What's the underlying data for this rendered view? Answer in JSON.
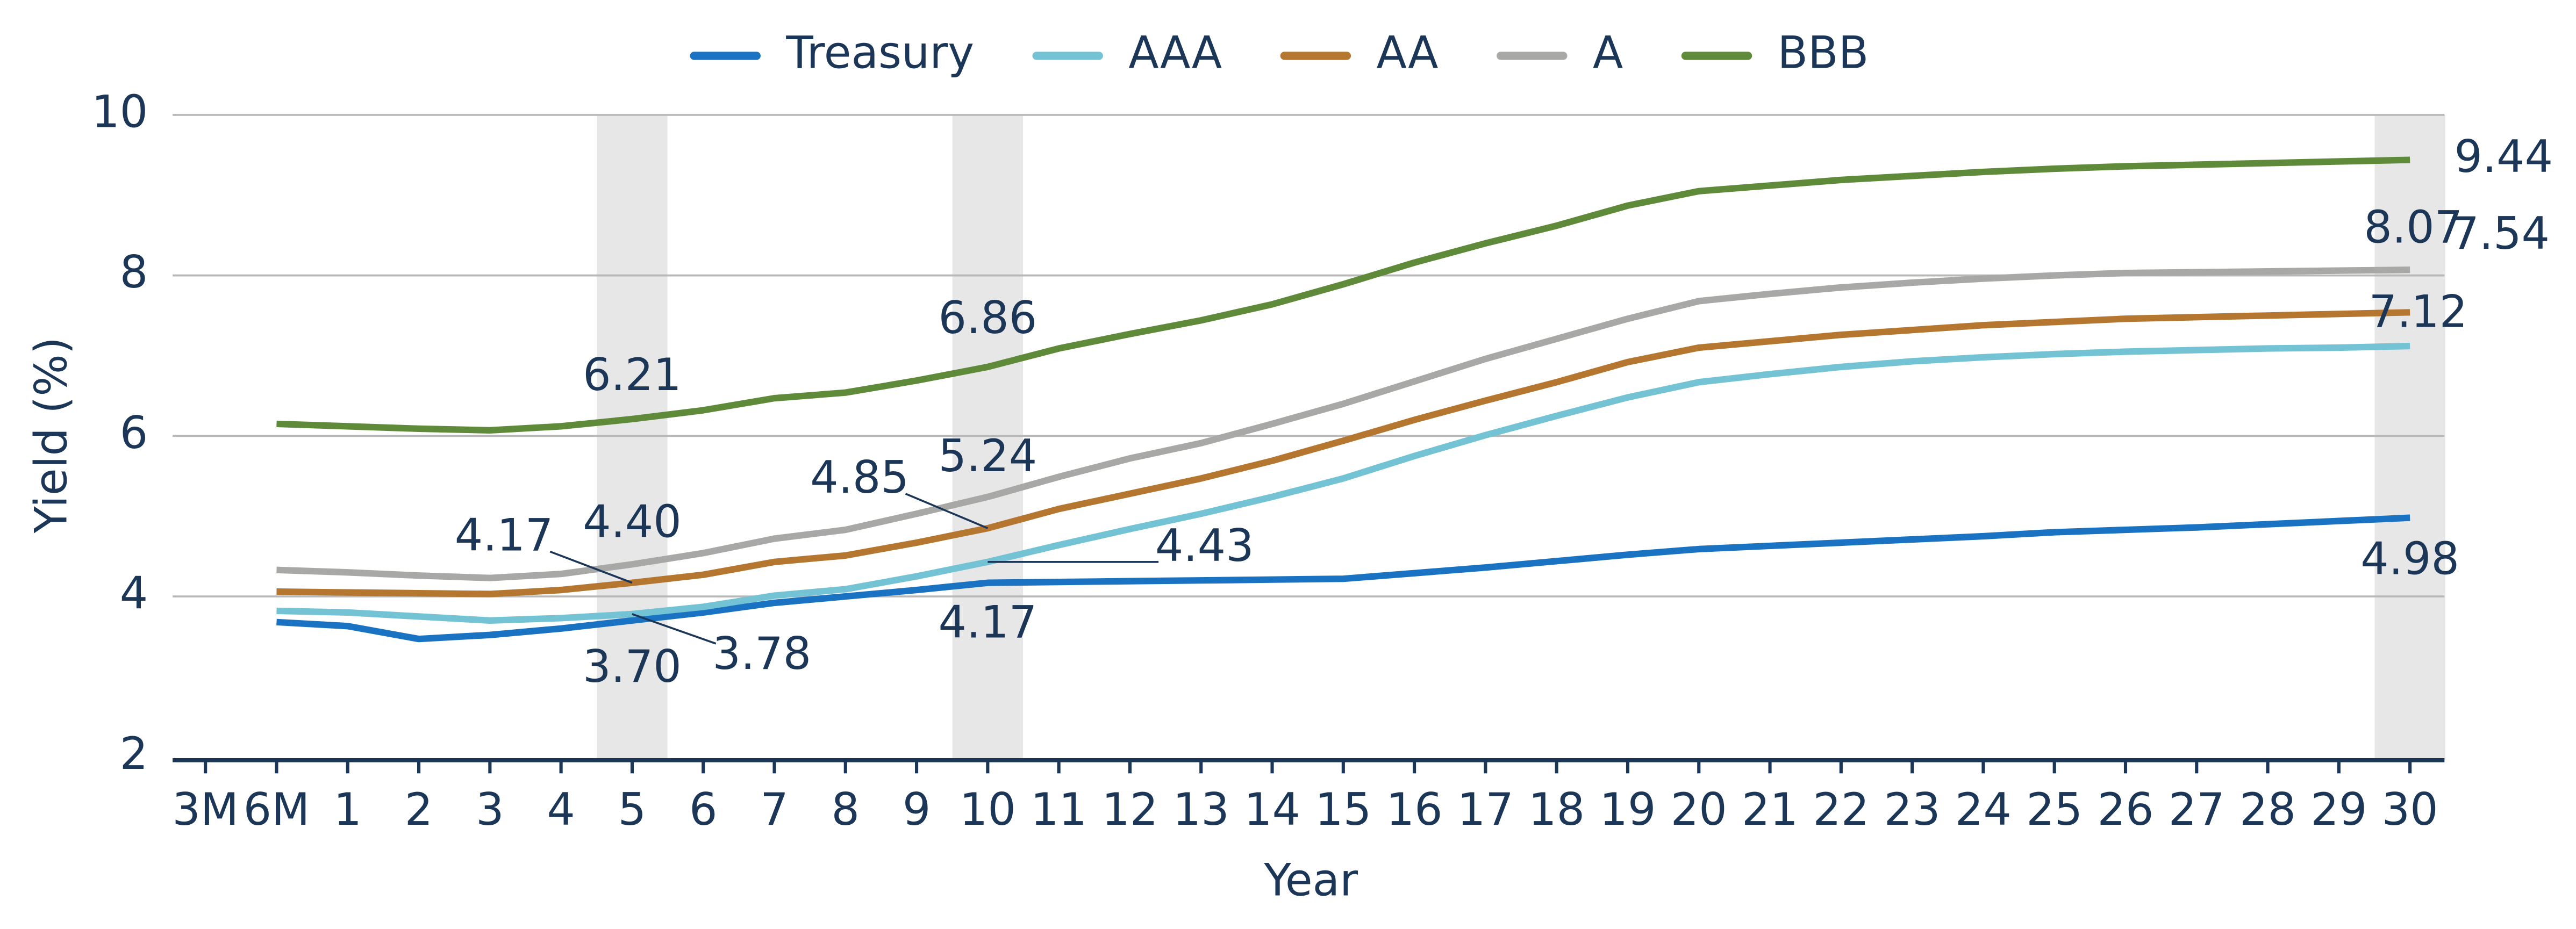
{
  "chart_data": {
    "type": "line",
    "x_label": "Year",
    "y_label": "Yield (%)",
    "categories": [
      "3M",
      "6M",
      "1",
      "2",
      "3",
      "4",
      "5",
      "6",
      "7",
      "8",
      "9",
      "10",
      "11",
      "12",
      "13",
      "14",
      "15",
      "16",
      "17",
      "18",
      "19",
      "20",
      "21",
      "22",
      "23",
      "24",
      "25",
      "26",
      "27",
      "28",
      "29",
      "30"
    ],
    "ylim": [
      2,
      10
    ],
    "yticks": [
      2,
      4,
      6,
      8,
      10
    ],
    "grid": true,
    "legend": "top",
    "series": [
      {
        "name": "Treasury",
        "color": "#1a73c2",
        "values": [
          null,
          3.68,
          3.63,
          3.47,
          3.52,
          3.6,
          3.7,
          3.8,
          3.92,
          4.0,
          4.08,
          4.17,
          4.18,
          4.19,
          4.2,
          4.21,
          4.22,
          4.29,
          4.36,
          4.44,
          4.52,
          4.59,
          4.63,
          4.67,
          4.71,
          4.75,
          4.8,
          4.83,
          4.86,
          4.9,
          4.94,
          4.98
        ],
        "value_labels": [
          null,
          null,
          null,
          null,
          null,
          null,
          "3.70",
          null,
          null,
          null,
          null,
          "4.17",
          null,
          null,
          null,
          null,
          null,
          null,
          null,
          null,
          null,
          null,
          null,
          null,
          null,
          null,
          null,
          null,
          null,
          null,
          null,
          "4.98"
        ]
      },
      {
        "name": "AAA",
        "color": "#74c3d5",
        "values": [
          null,
          3.82,
          3.8,
          3.75,
          3.7,
          3.73,
          3.78,
          3.87,
          4.01,
          4.09,
          4.25,
          4.43,
          4.64,
          4.84,
          5.03,
          5.24,
          5.47,
          5.75,
          6.01,
          6.25,
          6.48,
          6.67,
          6.77,
          6.86,
          6.93,
          6.98,
          7.02,
          7.05,
          7.07,
          7.09,
          7.1,
          7.12
        ],
        "value_labels": [
          null,
          null,
          null,
          null,
          null,
          null,
          "3.78",
          null,
          null,
          null,
          null,
          "4.43",
          null,
          null,
          null,
          null,
          null,
          null,
          null,
          null,
          null,
          null,
          null,
          null,
          null,
          null,
          null,
          null,
          null,
          null,
          null,
          "7.12"
        ]
      },
      {
        "name": "AA",
        "color": "#b5762f",
        "values": [
          null,
          4.06,
          4.05,
          4.04,
          4.03,
          4.08,
          4.17,
          4.27,
          4.43,
          4.51,
          4.67,
          4.85,
          5.09,
          5.28,
          5.47,
          5.69,
          5.94,
          6.2,
          6.44,
          6.67,
          6.92,
          7.1,
          7.18,
          7.26,
          7.32,
          7.38,
          7.42,
          7.46,
          7.48,
          7.5,
          7.52,
          7.54
        ],
        "value_labels": [
          null,
          null,
          null,
          null,
          null,
          null,
          "4.17",
          null,
          null,
          null,
          null,
          "4.85",
          null,
          null,
          null,
          null,
          null,
          null,
          null,
          null,
          null,
          null,
          null,
          null,
          null,
          null,
          null,
          null,
          null,
          null,
          null,
          "7.54"
        ]
      },
      {
        "name": "A",
        "color": "#a8a8a6",
        "values": [
          null,
          4.33,
          4.3,
          4.26,
          4.23,
          4.28,
          4.4,
          4.54,
          4.72,
          4.83,
          5.03,
          5.24,
          5.49,
          5.72,
          5.91,
          6.15,
          6.4,
          6.68,
          6.96,
          7.21,
          7.46,
          7.68,
          7.77,
          7.85,
          7.91,
          7.96,
          8.0,
          8.03,
          8.04,
          8.05,
          8.06,
          8.07
        ],
        "value_labels": [
          null,
          null,
          null,
          null,
          null,
          null,
          "4.40",
          null,
          null,
          null,
          null,
          "5.24",
          null,
          null,
          null,
          null,
          null,
          null,
          null,
          null,
          null,
          null,
          null,
          null,
          null,
          null,
          null,
          null,
          null,
          null,
          null,
          "8.07"
        ]
      },
      {
        "name": "BBB",
        "color": "#5f8a3a",
        "values": [
          null,
          6.15,
          6.12,
          6.09,
          6.07,
          6.12,
          6.21,
          6.32,
          6.47,
          6.54,
          6.69,
          6.86,
          7.09,
          7.27,
          7.44,
          7.64,
          7.89,
          8.16,
          8.4,
          8.62,
          8.87,
          9.05,
          9.12,
          9.19,
          9.24,
          9.29,
          9.33,
          9.36,
          9.38,
          9.4,
          9.42,
          9.44
        ],
        "value_labels": [
          null,
          null,
          null,
          null,
          null,
          null,
          "6.21",
          null,
          null,
          null,
          null,
          "6.86",
          null,
          null,
          null,
          null,
          null,
          null,
          null,
          null,
          null,
          null,
          null,
          null,
          null,
          null,
          null,
          null,
          null,
          null,
          null,
          "9.44"
        ]
      }
    ]
  }
}
